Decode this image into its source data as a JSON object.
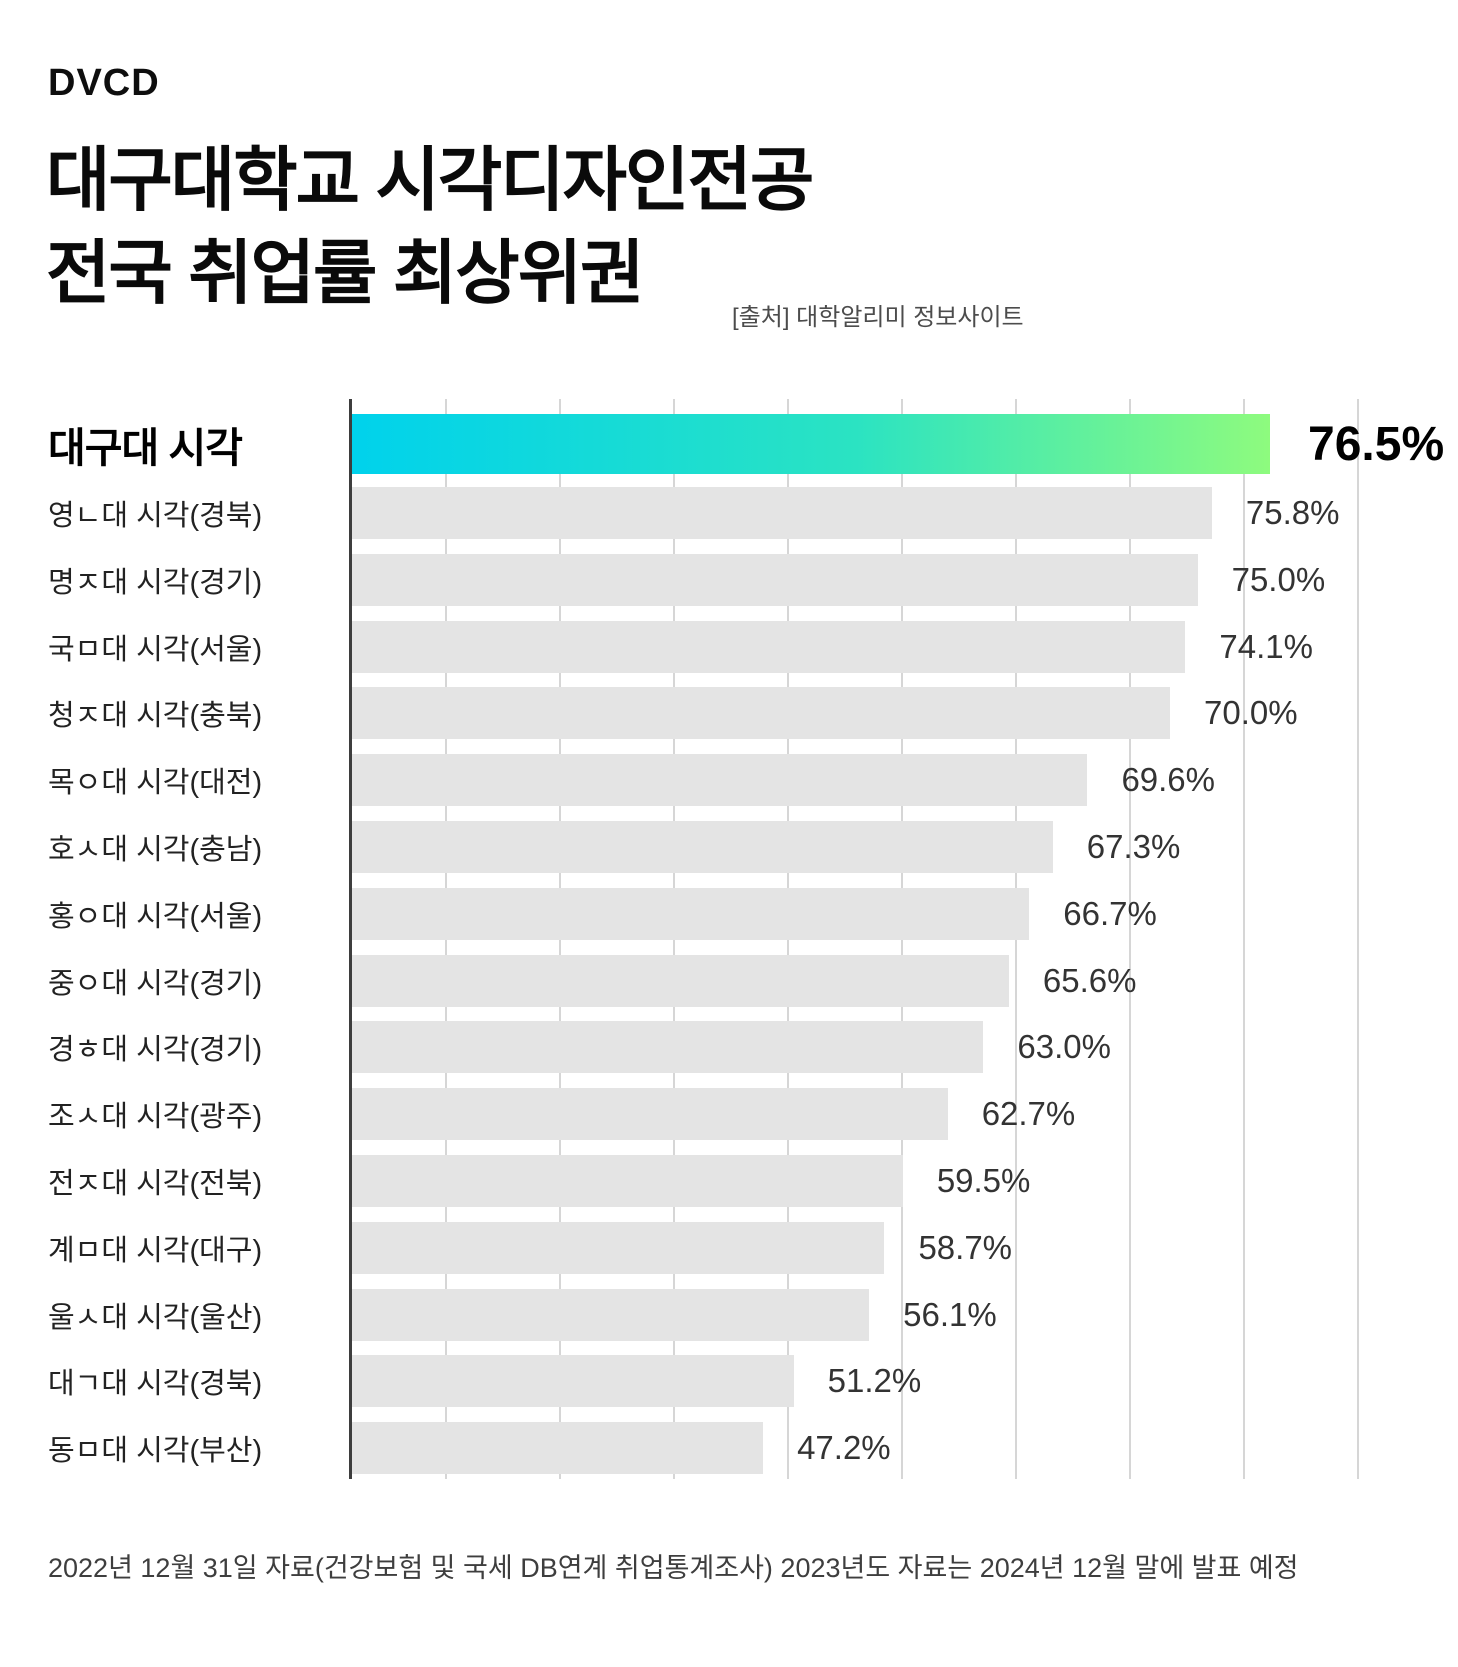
{
  "logo": "DVCD",
  "title": {
    "line1": "대구대학교 시각디자인전공",
    "line2": "전국 취업률 최상위권"
  },
  "source": "[출처] 대학알리미 정보사이트",
  "footnote": "2022년 12월 31일 자료(건강보험 및 국세 DB연계 취업통계조사) 2023년도 자료는 2024년 12월 말에 발표 예정",
  "colors": {
    "highlight_gradient_start": "#00d2ec",
    "highlight_gradient_end": "#8efb7e",
    "bar_gray": "#e4e4e4",
    "gridline": "#d6d6d6",
    "axis": "#3d3d3d",
    "background": "#ffffff"
  },
  "chart_data": {
    "type": "bar",
    "orientation": "horizontal",
    "title": "대구대학교 시각디자인전공 전국 취업률 최상위권",
    "xlabel": "",
    "ylabel": "",
    "unit": "%",
    "x_axis": {
      "tick_labels_visible": false,
      "gridline_count": 9,
      "approx_xlim_pct": [
        0,
        85
      ]
    },
    "legend": "none",
    "highlight_index": 0,
    "categories": [
      "대구대 시각",
      "영ㄴ대 시각(경북)",
      "명ㅈ대 시각(경기)",
      "국ㅁ대 시각(서울)",
      "청ㅈ대 시각(충북)",
      "목ㅇ대 시각(대전)",
      "호ㅅ대 시각(충남)",
      "홍ㅇ대 시각(서울)",
      "중ㅇ대 시각(경기)",
      "경ㅎ대 시각(경기)",
      "조ㅅ대 시각(광주)",
      "전ㅈ대 시각(전북)",
      "계ㅁ대 시각(대구)",
      "울ㅅ대 시각(울산)",
      "대ㄱ대 시각(경북)",
      "동ㅁ대 시각(부산)"
    ],
    "values": [
      76.5,
      75.8,
      75.0,
      74.1,
      70.0,
      69.6,
      67.3,
      66.7,
      65.6,
      63.0,
      62.7,
      59.5,
      58.7,
      56.1,
      51.2,
      47.2
    ],
    "items": [
      {
        "label": "대구대 시각",
        "value": 76.5,
        "value_label": "76.5%",
        "bar_fraction": 0.901
      },
      {
        "label": "영ㄴ대 시각(경북)",
        "value": 75.8,
        "value_label": "75.8%",
        "bar_fraction": 0.844
      },
      {
        "label": "명ㅈ대 시각(경기)",
        "value": 75.0,
        "value_label": "75.0%",
        "bar_fraction": 0.83
      },
      {
        "label": "국ㅁ대 시각(서울)",
        "value": 74.1,
        "value_label": "74.1%",
        "bar_fraction": 0.818
      },
      {
        "label": "청ㅈ대 시각(충북)",
        "value": 70.0,
        "value_label": "70.0%",
        "bar_fraction": 0.803
      },
      {
        "label": "목ㅇ대 시각(대전)",
        "value": 69.6,
        "value_label": "69.6%",
        "bar_fraction": 0.722
      },
      {
        "label": "호ㅅ대 시각(충남)",
        "value": 67.3,
        "value_label": "67.3%",
        "bar_fraction": 0.688
      },
      {
        "label": "홍ㅇ대 시각(서울)",
        "value": 66.7,
        "value_label": "66.7%",
        "bar_fraction": 0.665
      },
      {
        "label": "중ㅇ대 시각(경기)",
        "value": 65.6,
        "value_label": "65.6%",
        "bar_fraction": 0.645
      },
      {
        "label": "경ㅎ대 시각(경기)",
        "value": 63.0,
        "value_label": "63.0%",
        "bar_fraction": 0.62
      },
      {
        "label": "조ㅅ대 시각(광주)",
        "value": 62.7,
        "value_label": "62.7%",
        "bar_fraction": 0.585
      },
      {
        "label": "전ㅈ대 시각(전북)",
        "value": 59.5,
        "value_label": "59.5%",
        "bar_fraction": 0.541
      },
      {
        "label": "계ㅁ대 시각(대구)",
        "value": 58.7,
        "value_label": "58.7%",
        "bar_fraction": 0.523
      },
      {
        "label": "울ㅅ대 시각(울산)",
        "value": 56.1,
        "value_label": "56.1%",
        "bar_fraction": 0.508
      },
      {
        "label": "대ㄱ대 시각(경북)",
        "value": 51.2,
        "value_label": "51.2%",
        "bar_fraction": 0.434
      },
      {
        "label": "동ㅁ대 시각(부산)",
        "value": 47.2,
        "value_label": "47.2%",
        "bar_fraction": 0.404
      }
    ]
  }
}
